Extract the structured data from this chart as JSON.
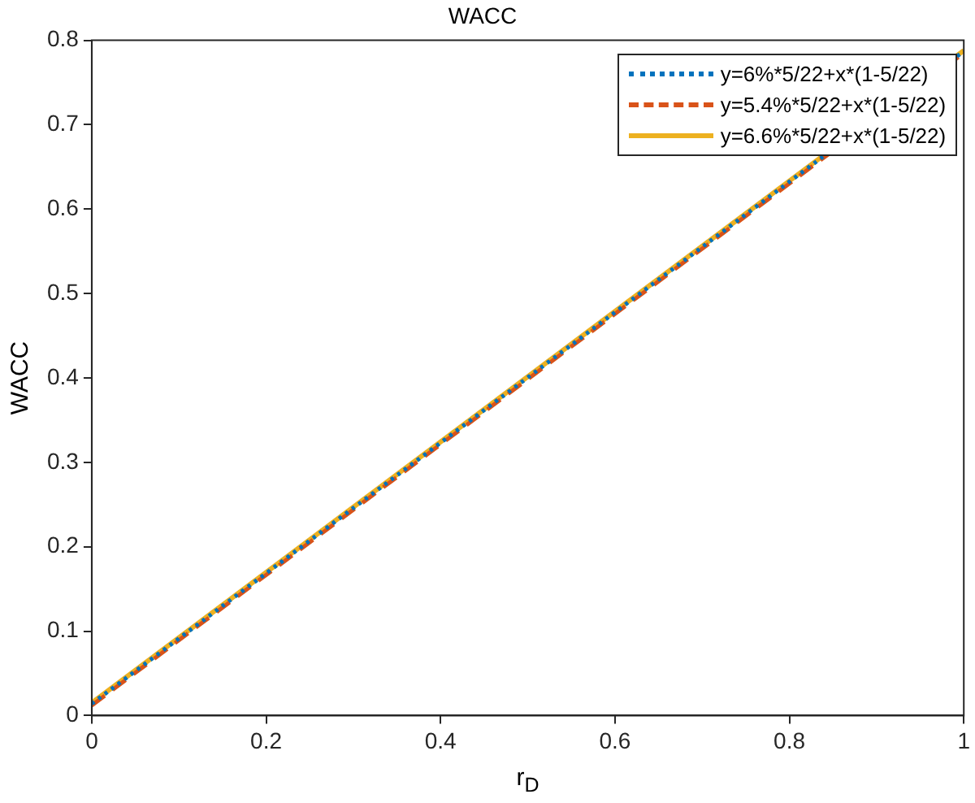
{
  "chart_data": {
    "type": "line",
    "title": "WACC",
    "xlabel": "r$_{D}$",
    "ylabel": "WACC",
    "xlim": [
      0,
      1
    ],
    "xticks": [
      0,
      0.2,
      0.4,
      0.6,
      0.8,
      1
    ],
    "ylim": [
      0,
      0.8
    ],
    "yticks": [
      0,
      0.1,
      0.2,
      0.3,
      0.4,
      0.5,
      0.6,
      0.7,
      0.8
    ],
    "grid": false,
    "legend": "top right",
    "marker": "none",
    "x": [
      0,
      1
    ],
    "series": [
      {
        "name": "y=6%*5/22+x*(1-5/22)",
        "color": "#0072bd",
        "line_style": "dotted",
        "values": [
          0.014,
          0.787
        ]
      },
      {
        "name": "y=5.4%*5/22+x*(1-5/22)",
        "color": "#d95319",
        "line_style": "dashed",
        "values": [
          0.012,
          0.785
        ]
      },
      {
        "name": "y=6.6%*5/22+x*(1-5/22)",
        "color": "#edb120",
        "line_style": "solid",
        "values": [
          0.015,
          0.788
        ]
      }
    ]
  }
}
